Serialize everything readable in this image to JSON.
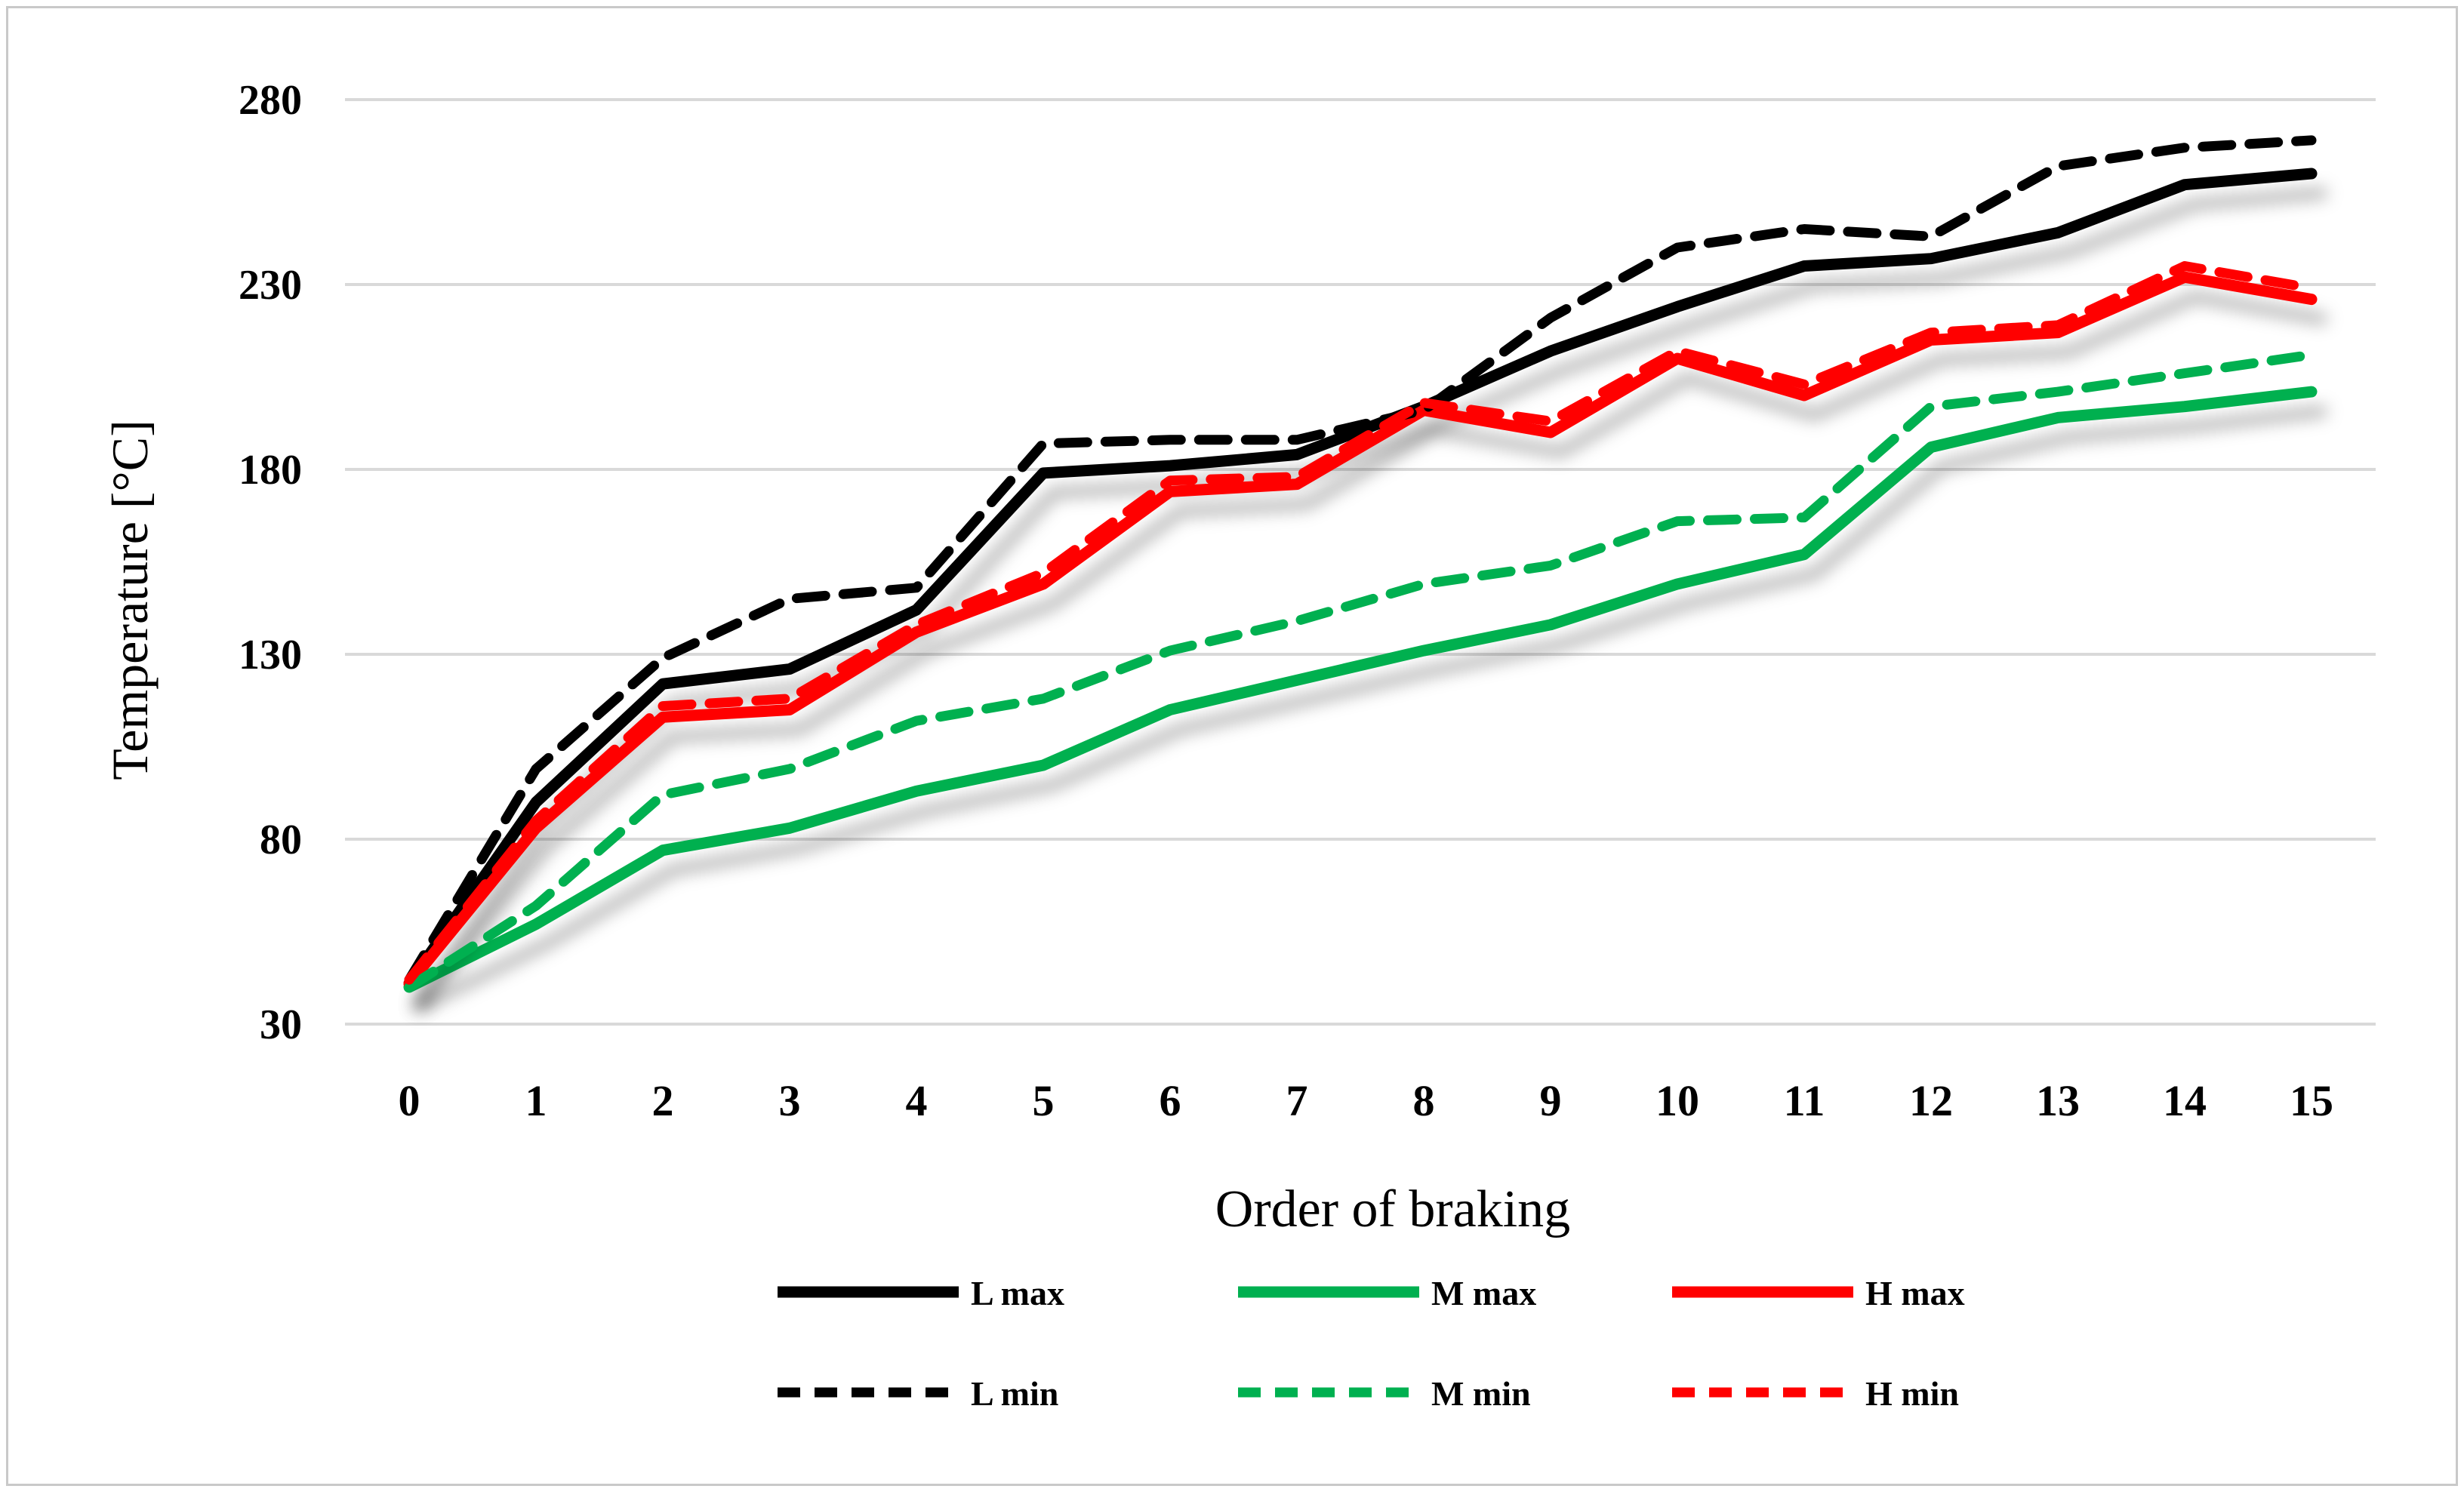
{
  "figure": {
    "background": "#ffffff",
    "border_color": "#c9c9c9"
  },
  "chart_data": {
    "type": "line",
    "title": "",
    "xlabel": "Order of braking",
    "ylabel": "Temperature [°C]",
    "x": [
      0,
      1,
      2,
      3,
      4,
      5,
      6,
      7,
      8,
      9,
      10,
      11,
      12,
      13,
      14,
      15
    ],
    "xtick_labels": [
      "0",
      "1",
      "2",
      "3",
      "4",
      "5",
      "6",
      "7",
      "8",
      "9",
      "10",
      "11",
      "12",
      "13",
      "14",
      "15"
    ],
    "yticks": [
      280,
      230,
      180,
      130,
      80,
      30
    ],
    "ylim": [
      30,
      280
    ],
    "xlim": [
      0,
      15
    ],
    "grid": true,
    "gridline_color": "#d9d9d9",
    "legend_position": "bottom",
    "legend_rows": [
      [
        "L max",
        "M max",
        "H max"
      ],
      [
        "L min",
        "M min",
        "H min"
      ]
    ],
    "series": [
      {
        "name": "L max",
        "color": "#000000",
        "style": "solid",
        "shadow": true,
        "values": [
          41,
          90,
          122,
          126,
          142,
          179,
          181,
          184,
          197,
          212,
          224,
          235,
          237,
          244,
          257,
          260
        ]
      },
      {
        "name": "M max",
        "color": "#00b050",
        "style": "solid",
        "shadow": true,
        "values": [
          40,
          57,
          77,
          83,
          93,
          100,
          115,
          123,
          131,
          138,
          149,
          157,
          186,
          194,
          197,
          201
        ]
      },
      {
        "name": "H max",
        "color": "#ff0000",
        "style": "solid",
        "shadow": true,
        "values": [
          41,
          83,
          113,
          115,
          136,
          149,
          174,
          176,
          196,
          190,
          210,
          200,
          215,
          217,
          232,
          226
        ]
      },
      {
        "name": "L min",
        "color": "#000000",
        "style": "dashed",
        "shadow": false,
        "values": [
          42,
          99,
          129,
          145,
          148,
          187,
          188,
          188,
          196,
          221,
          240,
          245,
          243,
          262,
          267,
          269
        ]
      },
      {
        "name": "M min",
        "color": "#00b050",
        "style": "dashed",
        "shadow": false,
        "values": [
          40,
          62,
          92,
          99,
          112,
          118,
          131,
          139,
          149,
          154,
          166,
          167,
          197,
          201,
          206,
          211
        ]
      },
      {
        "name": "H min",
        "color": "#ff0000",
        "style": "dashed",
        "shadow": false,
        "values": [
          42,
          85,
          116,
          118,
          138,
          152,
          177,
          178,
          198,
          193,
          212,
          203,
          217,
          219,
          235,
          229
        ]
      }
    ]
  }
}
